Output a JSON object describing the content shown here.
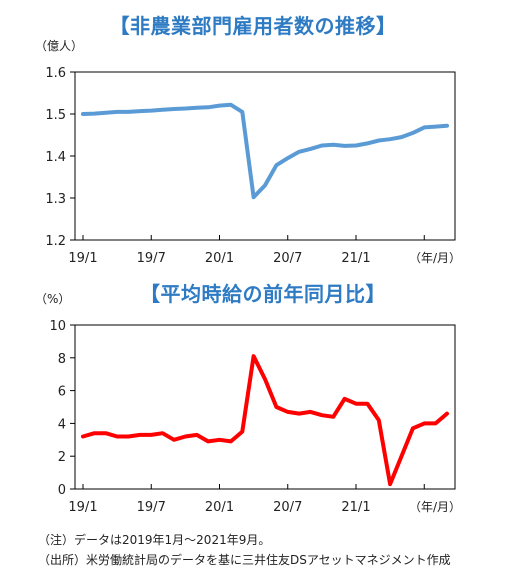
{
  "chart_data": [
    {
      "type": "line",
      "title": "【非農業部門雇用者数の推移】",
      "unit_label": "（億人）",
      "x_unit_label": "（年/月）",
      "color": "#5b9bd5",
      "x": [
        "2019-01",
        "2019-02",
        "2019-03",
        "2019-04",
        "2019-05",
        "2019-06",
        "2019-07",
        "2019-08",
        "2019-09",
        "2019-10",
        "2019-11",
        "2019-12",
        "2020-01",
        "2020-02",
        "2020-03",
        "2020-04",
        "2020-05",
        "2020-06",
        "2020-07",
        "2020-08",
        "2020-09",
        "2020-10",
        "2020-11",
        "2020-12",
        "2021-01",
        "2021-02",
        "2021-03",
        "2021-04",
        "2021-05",
        "2021-06",
        "2021-07",
        "2021-08",
        "2021-09"
      ],
      "series": [
        {
          "values": [
            1.5,
            1.501,
            1.503,
            1.505,
            1.505,
            1.507,
            1.508,
            1.51,
            1.512,
            1.513,
            1.515,
            1.516,
            1.52,
            1.522,
            1.505,
            1.302,
            1.33,
            1.378,
            1.395,
            1.41,
            1.417,
            1.425,
            1.427,
            1.424,
            1.425,
            1.43,
            1.437,
            1.44,
            1.445,
            1.455,
            1.468,
            1.47,
            1.472
          ]
        }
      ],
      "xticks": [
        "19/1",
        "19/7",
        "20/1",
        "20/7",
        "21/1"
      ],
      "xtick_positions": [
        "2019-01",
        "2019-07",
        "2020-01",
        "2020-07",
        "2021-01"
      ],
      "ylim": [
        1.2,
        1.6
      ],
      "yticks": [
        "1.2",
        "1.3",
        "1.4",
        "1.5",
        "1.6"
      ],
      "grid": false
    },
    {
      "type": "line",
      "title": "【平均時給の前年同月比】",
      "unit_label": "（%）",
      "x_unit_label": "（年/月）",
      "color": "#ff0000",
      "x": [
        "2019-01",
        "2019-02",
        "2019-03",
        "2019-04",
        "2019-05",
        "2019-06",
        "2019-07",
        "2019-08",
        "2019-09",
        "2019-10",
        "2019-11",
        "2019-12",
        "2020-01",
        "2020-02",
        "2020-03",
        "2020-04",
        "2020-05",
        "2020-06",
        "2020-07",
        "2020-08",
        "2020-09",
        "2020-10",
        "2020-11",
        "2020-12",
        "2021-01",
        "2021-02",
        "2021-03",
        "2021-04",
        "2021-05",
        "2021-06",
        "2021-07",
        "2021-08",
        "2021-09"
      ],
      "series": [
        {
          "values": [
            3.2,
            3.4,
            3.4,
            3.2,
            3.2,
            3.3,
            3.3,
            3.4,
            3.0,
            3.2,
            3.3,
            2.9,
            3.0,
            2.9,
            3.5,
            8.1,
            6.7,
            5.0,
            4.7,
            4.6,
            4.7,
            4.5,
            4.4,
            5.5,
            5.2,
            5.2,
            4.2,
            0.3,
            2.0,
            3.7,
            4.0,
            4.0,
            4.6
          ]
        }
      ],
      "xticks": [
        "19/1",
        "19/7",
        "20/1",
        "20/7",
        "21/1"
      ],
      "xtick_positions": [
        "2019-01",
        "2019-07",
        "2020-01",
        "2020-07",
        "2021-01"
      ],
      "ylim": [
        0,
        10
      ],
      "yticks": [
        "0",
        "2",
        "4",
        "6",
        "8",
        "10"
      ],
      "grid": false
    }
  ],
  "notes": {
    "note": "（注）データは2019年1月～2021年9月。",
    "source": "（出所）米労働統計局のデータを基に三井住友DSアセットマネジメント作成"
  }
}
